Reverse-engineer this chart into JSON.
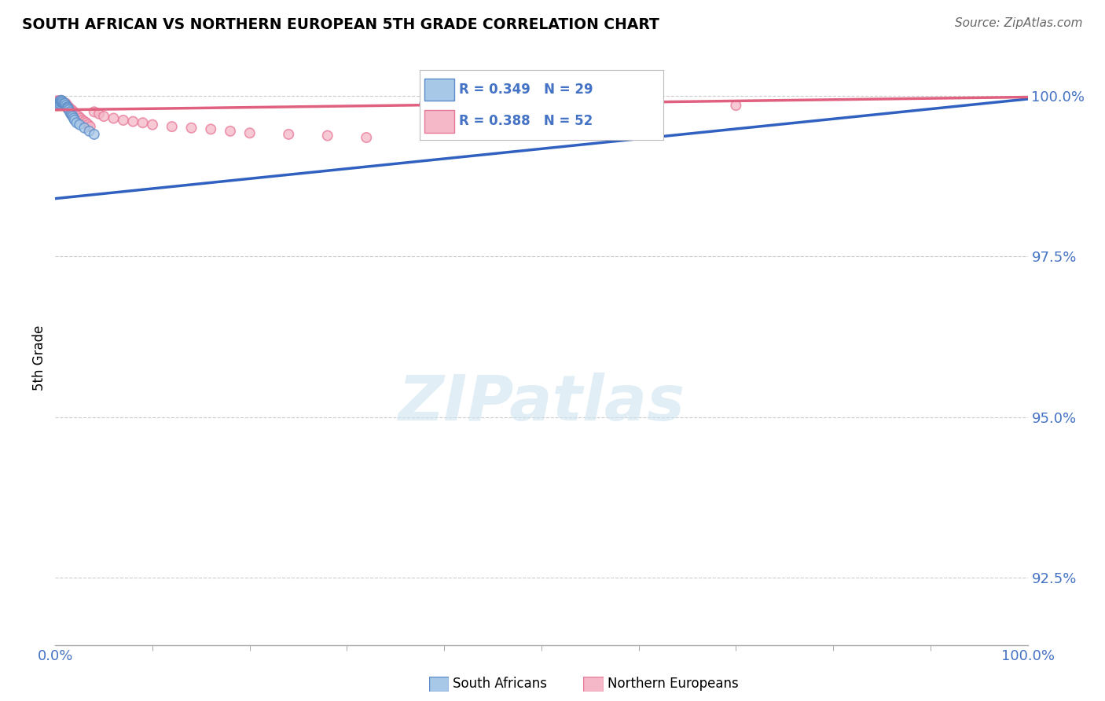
{
  "title": "SOUTH AFRICAN VS NORTHERN EUROPEAN 5TH GRADE CORRELATION CHART",
  "source": "Source: ZipAtlas.com",
  "ylabel": "5th Grade",
  "legend_blue_r": "R = 0.349",
  "legend_blue_n": "N = 29",
  "legend_pink_r": "R = 0.388",
  "legend_pink_n": "N = 52",
  "blue_fill": "#a8c8e8",
  "blue_edge": "#5b8cc8",
  "pink_fill": "#f4b8c8",
  "pink_edge": "#e87898",
  "trend_blue": "#3060c0",
  "trend_pink": "#e06080",
  "blue_x": [
    0.002,
    0.003,
    0.004,
    0.005,
    0.006,
    0.006,
    0.007,
    0.007,
    0.008,
    0.009,
    0.01,
    0.01,
    0.011,
    0.012,
    0.013,
    0.013,
    0.014,
    0.015,
    0.016,
    0.017,
    0.018,
    0.019,
    0.02,
    0.022,
    0.025,
    0.03,
    0.035,
    0.04,
    0.38
  ],
  "blue_y": [
    0.9985,
    0.9988,
    0.999,
    0.9988,
    0.9992,
    0.999,
    0.999,
    0.9992,
    0.999,
    0.9988,
    0.9985,
    0.9988,
    0.9985,
    0.9982,
    0.9982,
    0.998,
    0.9978,
    0.9975,
    0.9972,
    0.997,
    0.9968,
    0.9965,
    0.9962,
    0.9958,
    0.9955,
    0.995,
    0.9945,
    0.994,
    0.9988
  ],
  "blue_s": [
    80,
    80,
    80,
    90,
    100,
    80,
    80,
    80,
    80,
    80,
    80,
    80,
    80,
    80,
    80,
    80,
    80,
    80,
    80,
    80,
    80,
    80,
    80,
    80,
    80,
    80,
    80,
    80,
    80
  ],
  "pink_x": [
    0.002,
    0.003,
    0.003,
    0.004,
    0.004,
    0.005,
    0.005,
    0.006,
    0.007,
    0.007,
    0.008,
    0.008,
    0.009,
    0.01,
    0.01,
    0.011,
    0.011,
    0.012,
    0.013,
    0.014,
    0.015,
    0.016,
    0.017,
    0.018,
    0.019,
    0.02,
    0.022,
    0.024,
    0.026,
    0.028,
    0.03,
    0.032,
    0.034,
    0.036,
    0.04,
    0.045,
    0.05,
    0.06,
    0.07,
    0.08,
    0.09,
    0.1,
    0.12,
    0.14,
    0.16,
    0.18,
    0.2,
    0.24,
    0.28,
    0.32,
    0.4,
    0.7
  ],
  "pink_y": [
    0.9992,
    0.9992,
    0.999,
    0.999,
    0.9992,
    0.9992,
    0.999,
    0.999,
    0.9992,
    0.999,
    0.9988,
    0.999,
    0.9988,
    0.9988,
    0.9985,
    0.9985,
    0.9988,
    0.9985,
    0.9983,
    0.9982,
    0.998,
    0.9978,
    0.9978,
    0.9975,
    0.9975,
    0.9972,
    0.997,
    0.9968,
    0.9965,
    0.9962,
    0.996,
    0.9958,
    0.9955,
    0.9952,
    0.9975,
    0.9972,
    0.9968,
    0.9965,
    0.9962,
    0.996,
    0.9958,
    0.9955,
    0.9952,
    0.995,
    0.9948,
    0.9945,
    0.9942,
    0.994,
    0.9938,
    0.9935,
    0.998,
    0.9985
  ],
  "pink_s": [
    80,
    80,
    80,
    80,
    80,
    80,
    80,
    80,
    80,
    80,
    80,
    80,
    80,
    80,
    80,
    80,
    80,
    80,
    80,
    80,
    80,
    80,
    80,
    80,
    80,
    80,
    80,
    80,
    80,
    80,
    80,
    80,
    80,
    80,
    80,
    80,
    80,
    80,
    80,
    80,
    80,
    80,
    80,
    80,
    80,
    80,
    80,
    80,
    80,
    80,
    80,
    80
  ],
  "xlim": [
    0.0,
    1.0
  ],
  "ylim": [
    0.9145,
    1.004
  ],
  "yticks": [
    1.0,
    0.975,
    0.95,
    0.925
  ],
  "ytick_labels": [
    "100.0%",
    "97.5%",
    "95.0%",
    "92.5%"
  ],
  "grid_color": "#cccccc",
  "watermark_color": "#d0e4f0",
  "label_color": "#4472c4",
  "bg_color": "#ffffff"
}
